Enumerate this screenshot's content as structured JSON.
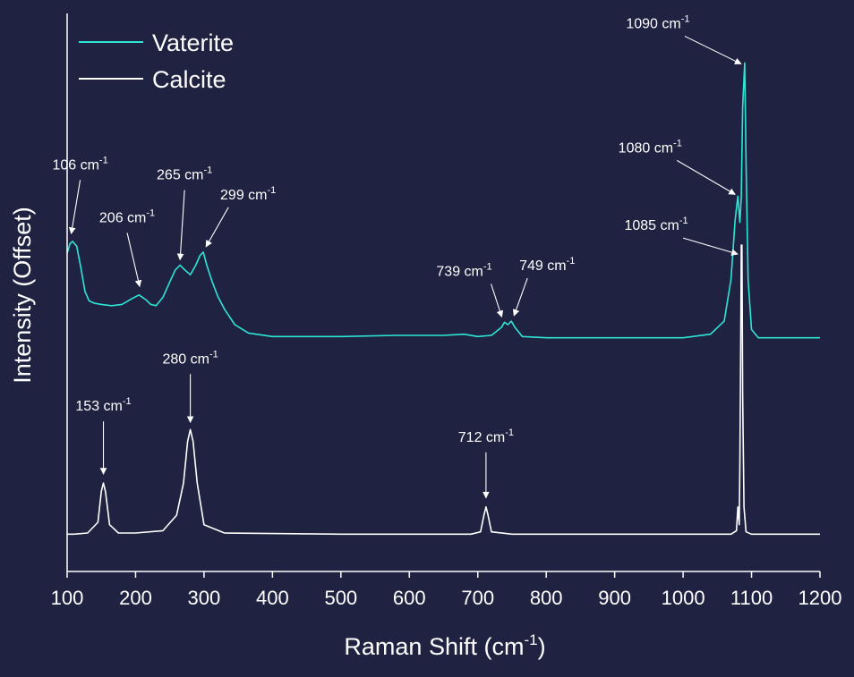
{
  "chart_data": {
    "type": "line",
    "xlabel": "Raman Shift (cm",
    "xlabel_sup": "-1",
    "xlabel_close": ")",
    "ylabel": "Intensity (Offset)",
    "xlim": [
      100,
      1200
    ],
    "xticks": [
      100,
      200,
      300,
      400,
      500,
      600,
      700,
      800,
      900,
      1000,
      1100,
      1200
    ],
    "y_axis_ticks": "none",
    "grid": false,
    "legend_position": "top-left",
    "colors": {
      "background": "#1f2240",
      "vaterite": "#2ee6d6",
      "calcite": "#ffffff"
    },
    "series": [
      {
        "name": "Vaterite",
        "color": "#2ee6d6",
        "x": [
          100,
          104,
          108,
          114,
          120,
          126,
          132,
          140,
          150,
          165,
          180,
          195,
          205,
          215,
          222,
          230,
          240,
          250,
          258,
          265,
          272,
          280,
          288,
          294,
          299,
          304,
          312,
          320,
          330,
          345,
          365,
          400,
          500,
          580,
          650,
          680,
          700,
          720,
          735,
          739,
          744,
          749,
          754,
          765,
          800,
          900,
          1000,
          1040,
          1060,
          1070,
          1076,
          1080,
          1083,
          1085,
          1087,
          1090,
          1092,
          1095,
          1100,
          1110,
          1150,
          1200
        ],
        "y": [
          0.72,
          0.8,
          0.82,
          0.78,
          0.6,
          0.4,
          0.32,
          0.3,
          0.29,
          0.28,
          0.29,
          0.34,
          0.37,
          0.33,
          0.29,
          0.28,
          0.35,
          0.48,
          0.58,
          0.62,
          0.58,
          0.54,
          0.62,
          0.7,
          0.73,
          0.62,
          0.48,
          0.36,
          0.25,
          0.12,
          0.05,
          0.02,
          0.02,
          0.03,
          0.03,
          0.04,
          0.02,
          0.03,
          0.1,
          0.14,
          0.12,
          0.15,
          0.1,
          0.02,
          0.01,
          0.01,
          0.01,
          0.04,
          0.15,
          0.5,
          1.0,
          1.2,
          0.98,
          1.2,
          1.95,
          2.32,
          1.5,
          0.5,
          0.08,
          0.01,
          0.01,
          0.01
        ]
      },
      {
        "name": "Calcite",
        "color": "#ffffff",
        "x": [
          100,
          110,
          130,
          145,
          150,
          153,
          156,
          162,
          175,
          200,
          240,
          260,
          270,
          276,
          280,
          284,
          290,
          300,
          330,
          500,
          690,
          704,
          709,
          712,
          715,
          720,
          750,
          1000,
          1070,
          1078,
          1080,
          1082,
          1083,
          1084,
          1085,
          1086,
          1087,
          1089,
          1092,
          1100,
          1200
        ],
        "y": [
          0.02,
          0.02,
          0.03,
          0.12,
          0.38,
          0.45,
          0.38,
          0.1,
          0.03,
          0.03,
          0.05,
          0.18,
          0.45,
          0.8,
          0.9,
          0.8,
          0.45,
          0.1,
          0.03,
          0.02,
          0.02,
          0.04,
          0.18,
          0.25,
          0.18,
          0.04,
          0.02,
          0.02,
          0.02,
          0.05,
          0.25,
          0.1,
          0.6,
          1.45,
          2.45,
          2.45,
          1.2,
          0.25,
          0.04,
          0.02,
          0.02
        ]
      }
    ],
    "annotations": [
      {
        "series": "Vaterite",
        "x": 106,
        "label": "106 cm",
        "sup": "-1"
      },
      {
        "series": "Vaterite",
        "x": 206,
        "label": "206 cm",
        "sup": "-1"
      },
      {
        "series": "Vaterite",
        "x": 265,
        "label": "265 cm",
        "sup": "-1"
      },
      {
        "series": "Vaterite",
        "x": 299,
        "label": "299 cm",
        "sup": "-1"
      },
      {
        "series": "Vaterite",
        "x": 739,
        "label": "739 cm",
        "sup": "-1"
      },
      {
        "series": "Vaterite",
        "x": 749,
        "label": "749 cm",
        "sup": "-1"
      },
      {
        "series": "Vaterite",
        "x": 1080,
        "label": "1080 cm",
        "sup": "-1"
      },
      {
        "series": "Vaterite",
        "x": 1090,
        "label": "1090 cm",
        "sup": "-1"
      },
      {
        "series": "Calcite",
        "x": 153,
        "label": "153 cm",
        "sup": "-1"
      },
      {
        "series": "Calcite",
        "x": 280,
        "label": "280 cm",
        "sup": "-1"
      },
      {
        "series": "Calcite",
        "x": 712,
        "label": "712 cm",
        "sup": "-1"
      },
      {
        "series": "Calcite",
        "x": 1085,
        "label": "1085 cm",
        "sup": "-1"
      }
    ]
  }
}
